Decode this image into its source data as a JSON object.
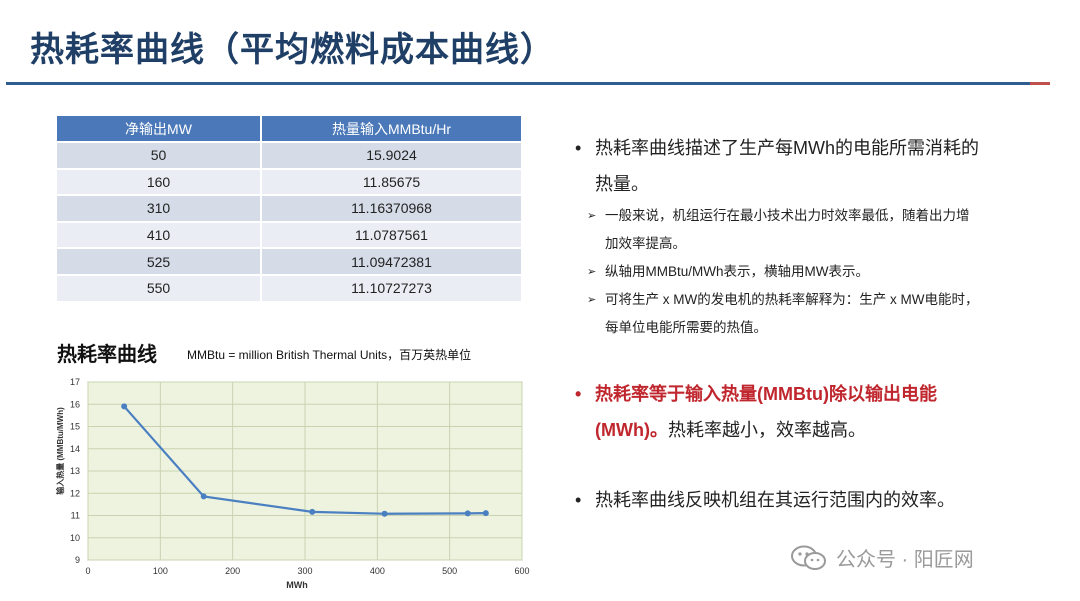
{
  "slide": {
    "title": "热耗率曲线（平均燃料成本曲线）"
  },
  "table": {
    "headers": [
      "净输出MW",
      "热量输入MMBtu/Hr"
    ],
    "rows": [
      [
        "50",
        "15.9024"
      ],
      [
        "160",
        "11.85675"
      ],
      [
        "310",
        "11.16370968"
      ],
      [
        "410",
        "11.0787561"
      ],
      [
        "525",
        "11.09472381"
      ],
      [
        "550",
        "11.10727273"
      ]
    ]
  },
  "chart_section": {
    "heading": "热耗率曲线",
    "note": "MMBtu = million British Thermal Units，百万英热单位"
  },
  "chart_data": {
    "type": "line",
    "x": [
      50,
      160,
      310,
      410,
      525,
      550
    ],
    "series": [
      {
        "values": [
          15.9024,
          11.85675,
          11.16370968,
          11.0787561,
          11.09472381,
          11.10727273
        ]
      }
    ],
    "xlabel": "MWh",
    "ylabel": "输入热量 (MMBtu/MWh)",
    "xlim": [
      0,
      600
    ],
    "ylim": [
      9,
      17
    ],
    "x_ticks": [
      "0",
      "100",
      "200",
      "300",
      "400",
      "500",
      "600"
    ],
    "y_ticks": [
      "9",
      "10",
      "11",
      "12",
      "13",
      "14",
      "15",
      "16",
      "17"
    ],
    "grid": true,
    "colors": {
      "line": "#4a7fc1",
      "plot_bg": "#eef3df",
      "grid": "#c8d3b0"
    }
  },
  "bullets": {
    "b1_line1": "热耗率曲线描述了生产每MWh的电能所需消耗的",
    "b1_line2": "热量。",
    "sub1_line1": "一般来说，机组运行在最小技术出力时效率最低，随着出力增",
    "sub1_line2": "加效率提高。",
    "sub2": "纵轴用MMBtu/MWh表示，横轴用MW表示。",
    "sub3_line1": "可将生产 x MW的发电机的热耗率解释为：生产 x MW电能时，",
    "sub3_line2": "每单位电能所需要的热值。",
    "b2_red_line1": "热耗率等于输入热量(MMBtu)除以输出电能",
    "b2_red_line2": "(MWh)。",
    "b2_tail": "热耗率越小，效率越高。",
    "b3": "热耗率曲线反映机组在其运行范围内的效率。",
    "bullet_glyph": "•",
    "arrow_glyph": "➢"
  },
  "watermark": {
    "text": "公众号 · 阳匠网",
    "icon": "wechat-icon"
  }
}
